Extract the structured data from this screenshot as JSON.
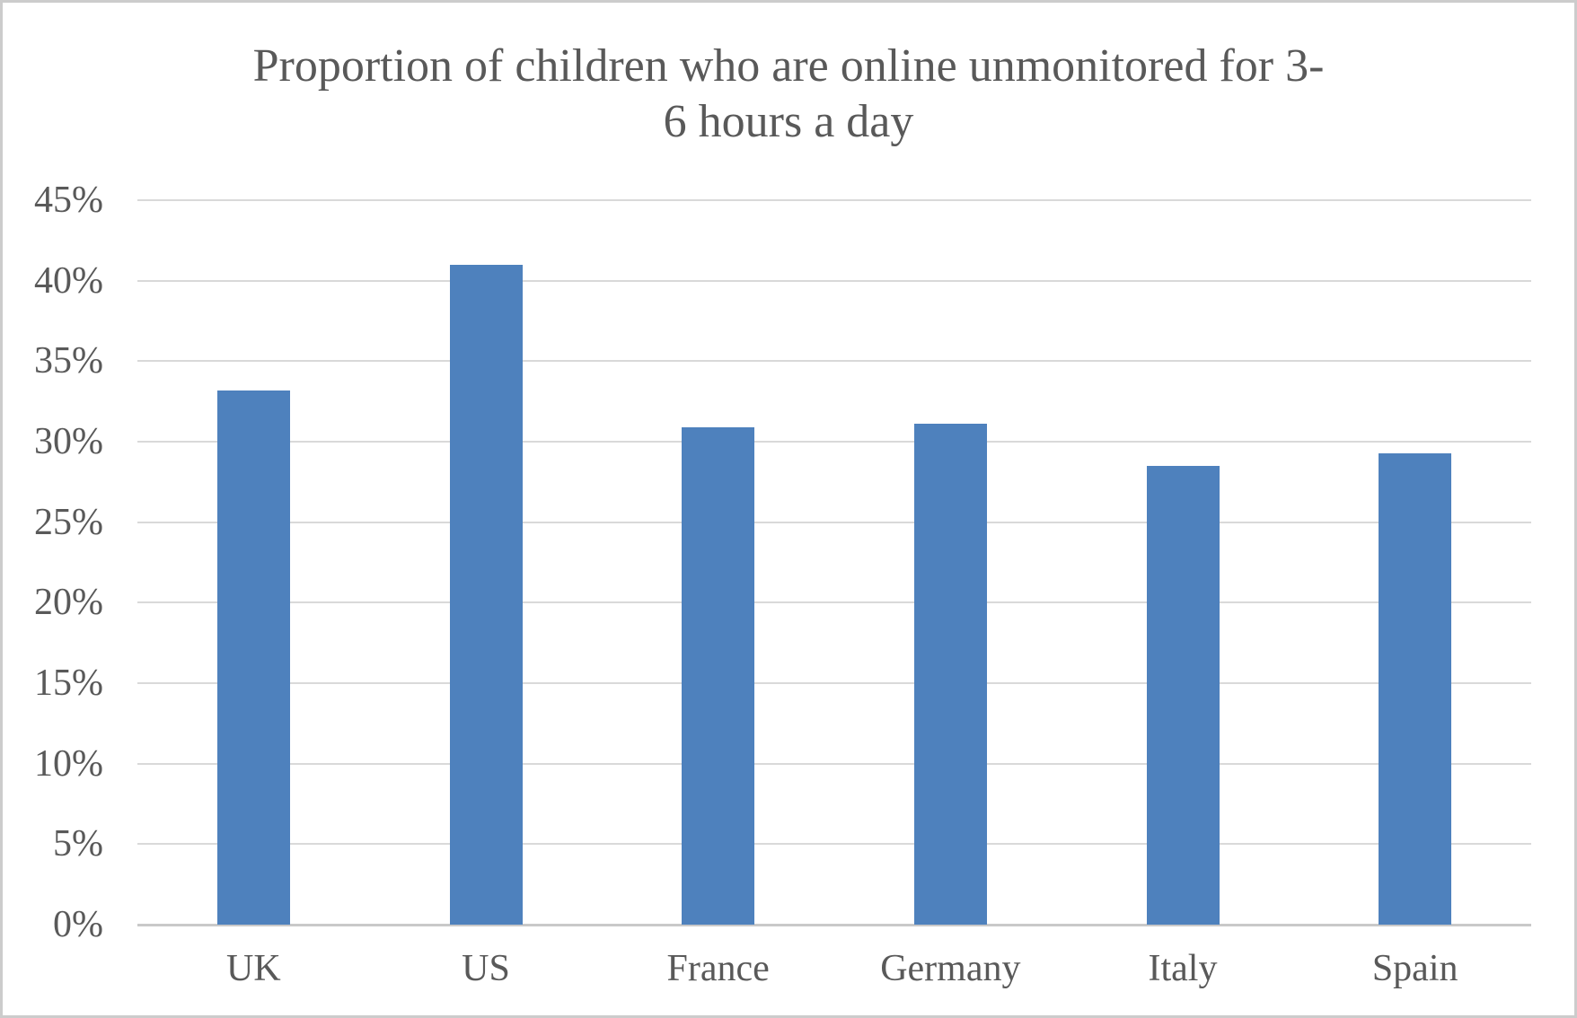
{
  "chart_data": {
    "type": "bar",
    "title": "Proportion of children who are online unmonitored for 3-6 hours a day",
    "title_line1": "Proportion of children who are online unmonitored for 3-",
    "title_line2": "6 hours a day",
    "categories": [
      "UK",
      "US",
      "France",
      "Germany",
      "Italy",
      "Spain"
    ],
    "values": [
      33.2,
      41,
      30.9,
      31.1,
      28.5,
      29.3
    ],
    "ylabel": "",
    "xlabel": "",
    "ylim": [
      0,
      45
    ],
    "ytick_step": 5,
    "ytick_labels": [
      "0%",
      "5%",
      "10%",
      "15%",
      "20%",
      "25%",
      "30%",
      "35%",
      "40%",
      "45%"
    ],
    "grid": true,
    "legend_position": "none",
    "bar_color": "#4E81BD",
    "gridline_color": "#D9D9D9",
    "axis_line_color": "#C9C9C9",
    "text_color": "#595959",
    "background_color": "#FFFFFF",
    "border_color": "#CCCCCC"
  }
}
